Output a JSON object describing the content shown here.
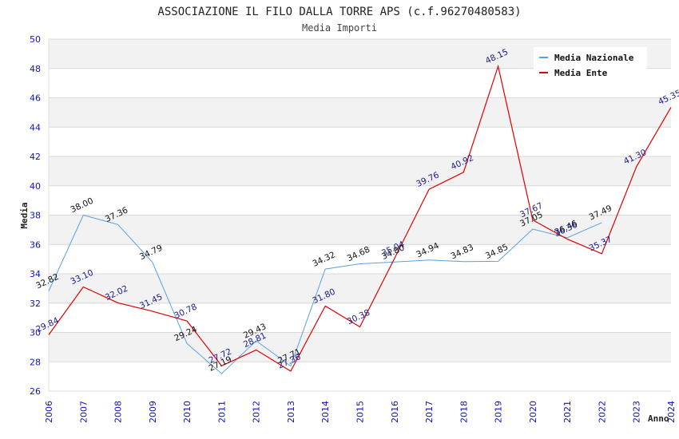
{
  "chart_data": {
    "type": "line",
    "title": "ASSOCIAZIONE IL FILO DALLA TORRE APS (c.f.96270480583)",
    "subtitle": "Media Importi",
    "xlabel": "Anno",
    "ylabel": "Media",
    "x": [
      "2006",
      "2007",
      "2008",
      "2009",
      "2010",
      "2011",
      "2012",
      "2013",
      "2014",
      "2015",
      "2016",
      "2017",
      "2018",
      "2019",
      "2020",
      "2021",
      "2022",
      "2023",
      "2024"
    ],
    "ylim": [
      26,
      50
    ],
    "yticks": [
      "26",
      "28",
      "30",
      "32",
      "34",
      "36",
      "38",
      "40",
      "42",
      "44",
      "46",
      "48",
      "50"
    ],
    "grid": true,
    "legend_position": "top-right",
    "series": [
      {
        "name": "Media Nazionale",
        "color": "#5aa0e0",
        "values": [
          32.82,
          38.0,
          37.36,
          34.79,
          29.24,
          27.19,
          29.43,
          27.71,
          34.32,
          34.68,
          34.8,
          34.94,
          34.83,
          34.85,
          37.05,
          36.46,
          37.49,
          null,
          null
        ],
        "labels": [
          "32.82",
          "38.00",
          "37.36",
          "34.79",
          "29.24",
          "27.19",
          "29.43",
          "27.71",
          "34.32",
          "34.68",
          "34.80",
          "34.94",
          "34.83",
          "34.85",
          "37.05",
          "36.46",
          "37.49",
          "",
          ""
        ]
      },
      {
        "name": "Media Ente",
        "color": "#e00000",
        "values": [
          29.84,
          33.1,
          32.02,
          31.45,
          30.78,
          27.72,
          28.81,
          27.36,
          31.8,
          30.38,
          35.04,
          39.76,
          40.92,
          48.15,
          37.67,
          36.36,
          35.37,
          41.3,
          45.35
        ],
        "labels": [
          "29.84",
          "33.10",
          "32.02",
          "31.45",
          "30.78",
          "27.72",
          "28.81",
          "27.36",
          "31.80",
          "30.38",
          "35.04",
          "39.76",
          "40.92",
          "48.15",
          "37.67",
          "36.36",
          "35.37",
          "41.30",
          "45.35"
        ]
      }
    ]
  }
}
